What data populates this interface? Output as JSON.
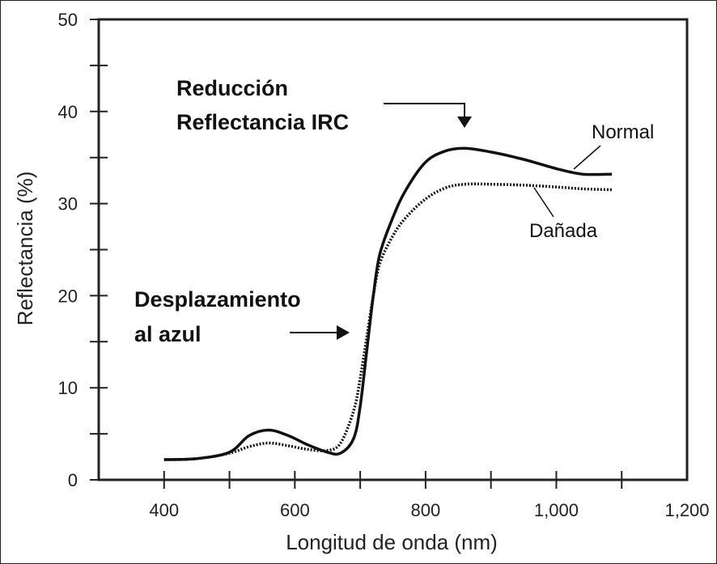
{
  "chart_data": {
    "type": "line",
    "xlabel": "Longitud de onda (nm)",
    "ylabel": "Reflectancia (%)",
    "xlim": [
      300,
      1200
    ],
    "ylim": [
      0,
      50
    ],
    "x_ticks": [
      400,
      600,
      800,
      1000,
      1200
    ],
    "x_tick_labels": [
      "400",
      "600",
      "800",
      "1,000",
      "1,200"
    ],
    "y_ticks": [
      0,
      10,
      20,
      30,
      40,
      50
    ],
    "y_tick_labels": [
      "0",
      "10",
      "20",
      "30",
      "40",
      "50"
    ],
    "grid": false,
    "series": [
      {
        "name": "Normal",
        "style": "solid",
        "x": [
          400,
          450,
          500,
          530,
          560,
          590,
          620,
          650,
          670,
          690,
          700,
          710,
          720,
          730,
          750,
          770,
          800,
          830,
          860,
          900,
          950,
          1000,
          1040,
          1085
        ],
        "y": [
          2.2,
          2.3,
          3.0,
          4.8,
          5.4,
          4.8,
          3.8,
          3.0,
          2.9,
          4.5,
          8.0,
          14.0,
          20.0,
          24.5,
          28.5,
          31.5,
          34.5,
          35.7,
          36.0,
          35.6,
          34.8,
          33.8,
          33.2,
          33.2
        ]
      },
      {
        "name": "Dañada",
        "style": "dotted",
        "x": [
          400,
          450,
          500,
          530,
          560,
          590,
          620,
          650,
          670,
          690,
          700,
          710,
          720,
          730,
          750,
          770,
          800,
          830,
          860,
          900,
          950,
          1000,
          1040,
          1085
        ],
        "y": [
          2.2,
          2.3,
          2.9,
          3.6,
          4.0,
          3.7,
          3.3,
          3.2,
          4.0,
          7.5,
          11.0,
          15.5,
          20.0,
          23.5,
          26.5,
          28.5,
          30.5,
          31.7,
          32.1,
          32.1,
          32.0,
          31.8,
          31.6,
          31.5
        ]
      }
    ],
    "annotations": [
      {
        "lines": [
          "Reducción",
          "Reflectancia IRC"
        ]
      },
      {
        "lines": [
          "Desplazamiento",
          "al azul"
        ]
      }
    ]
  }
}
